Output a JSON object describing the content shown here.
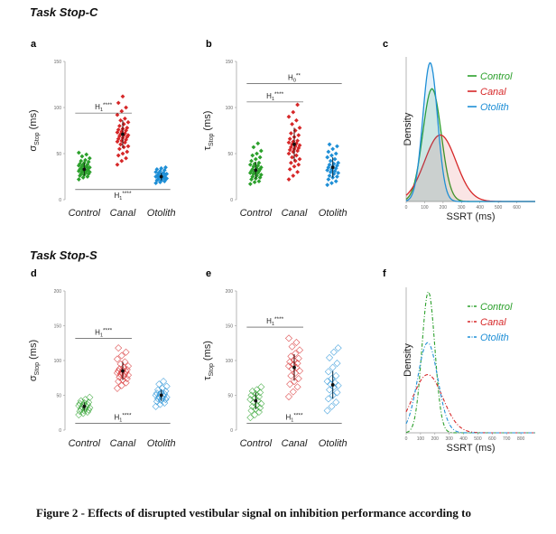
{
  "sections": {
    "top_title": "Task Stop-C",
    "bottom_title": "Task Stop-S"
  },
  "caption": "Figure 2 - Effects of disrupted vestibular signal on inhibition performance according to",
  "colors": {
    "Control": "#2ca02c",
    "Canal": "#d62728",
    "Otolith": "#1f8fd6"
  },
  "chart_data": [
    {
      "panel": "a",
      "type": "scatter",
      "style": "filled",
      "ylabel": "σStop (ms)",
      "ylabel_main": "σ",
      "ylabel_sub": "Stop",
      "ylabel_unit": "(ms)",
      "categories": [
        "Control",
        "Canal",
        "Otolith"
      ],
      "ylim": [
        0,
        150
      ],
      "yticks": [
        0,
        50,
        100,
        150
      ],
      "points": {
        "Control": [
          22,
          24,
          25,
          26,
          27,
          28,
          28,
          29,
          30,
          30,
          31,
          31,
          32,
          32,
          33,
          33,
          34,
          34,
          35,
          35,
          36,
          36,
          37,
          38,
          38,
          39,
          40,
          41,
          42,
          43,
          45,
          47,
          49,
          51
        ],
        "Canal": [
          38,
          42,
          45,
          48,
          50,
          52,
          55,
          57,
          58,
          60,
          62,
          63,
          64,
          65,
          66,
          67,
          68,
          69,
          70,
          70,
          71,
          72,
          73,
          74,
          75,
          76,
          77,
          78,
          80,
          82,
          84,
          86,
          88,
          92,
          96,
          100,
          105,
          112
        ],
        "Otolith": [
          18,
          19,
          20,
          21,
          21,
          22,
          22,
          23,
          23,
          24,
          24,
          25,
          25,
          25,
          26,
          26,
          27,
          27,
          28,
          28,
          29,
          29,
          30,
          31,
          32,
          33,
          34,
          35
        ]
      },
      "means": {
        "Control": 33,
        "Canal": 71,
        "Otolith": 25
      },
      "sd": {
        "Control": 7,
        "Canal": 15,
        "Otolith": 4
      },
      "annotations": [
        {
          "text": "H",
          "sub": "1",
          "sup": "****",
          "from": "Control",
          "to": "Canal",
          "y": 94,
          "label_side": "above"
        },
        {
          "text": "H",
          "sub": "1",
          "sup": "****",
          "from": "Control",
          "to": "Otolith",
          "y": 11,
          "label_side": "below"
        }
      ]
    },
    {
      "panel": "b",
      "type": "scatter",
      "style": "filled",
      "ylabel": "τStop (ms)",
      "ylabel_main": "τ",
      "ylabel_sub": "Stop",
      "ylabel_unit": "(ms)",
      "categories": [
        "Control",
        "Canal",
        "Otolith"
      ],
      "ylim": [
        0,
        150
      ],
      "yticks": [
        0,
        50,
        100,
        150
      ],
      "points": {
        "Control": [
          17,
          19,
          20,
          22,
          23,
          24,
          25,
          26,
          27,
          28,
          29,
          29,
          30,
          31,
          31,
          32,
          33,
          33,
          34,
          35,
          36,
          37,
          38,
          39,
          40,
          42,
          44,
          46,
          48,
          50,
          53,
          57,
          61
        ],
        "Canal": [
          22,
          26,
          30,
          33,
          36,
          38,
          40,
          42,
          44,
          46,
          48,
          50,
          52,
          53,
          54,
          55,
          56,
          57,
          58,
          59,
          60,
          61,
          62,
          63,
          64,
          66,
          68,
          70,
          72,
          75,
          78,
          82,
          86,
          90,
          95,
          103
        ],
        "Otolith": [
          16,
          18,
          20,
          22,
          24,
          25,
          26,
          28,
          29,
          30,
          31,
          32,
          33,
          34,
          35,
          36,
          37,
          38,
          39,
          40,
          42,
          44,
          46,
          48,
          50,
          52,
          55,
          58,
          60
        ]
      },
      "means": {
        "Control": 32,
        "Canal": 60,
        "Otolith": 35
      },
      "sd": {
        "Control": 9,
        "Canal": 18,
        "Otolith": 11
      },
      "annotations": [
        {
          "text": "H",
          "sub": "0",
          "sup": "**",
          "from": "Control",
          "to": "Otolith",
          "y": 126,
          "label_side": "above"
        },
        {
          "text": "H",
          "sub": "1",
          "sup": "****",
          "from": "Control",
          "to": "Canal",
          "y": 106,
          "label_side": "above"
        }
      ]
    },
    {
      "panel": "c",
      "type": "line",
      "style": "solid",
      "xlabel": "SSRT (ms)",
      "ylabel": "Density",
      "xlim": [
        0,
        700
      ],
      "xticks": [
        0,
        100,
        200,
        300,
        400,
        500,
        600
      ],
      "legend_position": "top-right",
      "series": [
        {
          "name": "Control",
          "mu": 140,
          "sigma": 50,
          "peak": 0.78
        },
        {
          "name": "Canal",
          "mu": 185,
          "sigma": 85,
          "peak": 0.46
        },
        {
          "name": "Otolith",
          "mu": 130,
          "sigma": 40,
          "peak": 0.96
        }
      ]
    },
    {
      "panel": "d",
      "type": "scatter",
      "style": "open",
      "ylabel": "σStop (ms)",
      "ylabel_main": "σ",
      "ylabel_sub": "Stop",
      "ylabel_unit": "(ms)",
      "categories": [
        "Control",
        "Canal",
        "Otolith"
      ],
      "ylim": [
        0,
        200
      ],
      "yticks": [
        0,
        50,
        100,
        150,
        200
      ],
      "points": {
        "Control": [
          22,
          24,
          26,
          27,
          28,
          29,
          30,
          31,
          32,
          33,
          34,
          35,
          36,
          37,
          38,
          39,
          40,
          42,
          44,
          47
        ],
        "Canal": [
          60,
          64,
          68,
          70,
          72,
          74,
          76,
          78,
          79,
          80,
          81,
          82,
          83,
          84,
          85,
          86,
          87,
          88,
          90,
          92,
          95,
          98,
          102,
          107,
          112,
          118
        ],
        "Otolith": [
          34,
          37,
          39,
          41,
          43,
          44,
          45,
          46,
          47,
          48,
          49,
          50,
          51,
          52,
          53,
          54,
          56,
          58,
          60,
          63,
          66,
          70
        ]
      },
      "means": {
        "Control": 34,
        "Canal": 85,
        "Otolith": 50
      },
      "sd": {
        "Control": 6,
        "Canal": 13,
        "Otolith": 8
      },
      "annotations": [
        {
          "text": "H",
          "sub": "1",
          "sup": "****",
          "from": "Control",
          "to": "Canal",
          "y": 132,
          "label_side": "above"
        },
        {
          "text": "H",
          "sub": "1",
          "sup": "****",
          "from": "Control",
          "to": "Otolith",
          "y": 10,
          "label_side": "above"
        }
      ]
    },
    {
      "panel": "e",
      "type": "scatter",
      "style": "open",
      "ylabel": "τStop (ms)",
      "ylabel_main": "τ",
      "ylabel_sub": "Stop",
      "ylabel_unit": "(ms)",
      "categories": [
        "Control",
        "Canal",
        "Otolith"
      ],
      "ylim": [
        0,
        200
      ],
      "yticks": [
        0,
        50,
        100,
        150,
        200
      ],
      "points": {
        "Control": [
          18,
          22,
          26,
          28,
          30,
          32,
          34,
          36,
          38,
          40,
          42,
          44,
          46,
          48,
          50,
          52,
          54,
          56,
          58,
          62
        ],
        "Canal": [
          48,
          55,
          62,
          66,
          70,
          74,
          78,
          82,
          85,
          88,
          90,
          92,
          94,
          96,
          98,
          100,
          103,
          106,
          110,
          115,
          120,
          126,
          132
        ],
        "Otolith": [
          28,
          34,
          40,
          45,
          50,
          54,
          58,
          62,
          64,
          66,
          68,
          70,
          74,
          78,
          84,
          90,
          96,
          104,
          112,
          118
        ]
      },
      "means": {
        "Control": 42,
        "Canal": 90,
        "Otolith": 65
      },
      "sd": {
        "Control": 12,
        "Canal": 19,
        "Otolith": 20
      },
      "annotations": [
        {
          "text": "H",
          "sub": "1",
          "sup": "****",
          "from": "Control",
          "to": "Canal",
          "y": 148,
          "label_side": "above"
        },
        {
          "text": "H",
          "sub": "1",
          "sup": "****",
          "from": "Control",
          "to": "Otolith",
          "y": 10,
          "label_side": "above"
        }
      ]
    },
    {
      "panel": "f",
      "type": "line",
      "style": "dashed",
      "xlabel": "SSRT (ms)",
      "ylabel": "Density",
      "xlim": [
        0,
        900
      ],
      "xticks": [
        0,
        100,
        200,
        300,
        400,
        500,
        600,
        700,
        800
      ],
      "legend_position": "top-right",
      "series": [
        {
          "name": "Control",
          "mu": 155,
          "sigma": 45,
          "peak": 0.97
        },
        {
          "name": "Canal",
          "mu": 150,
          "sigma": 105,
          "peak": 0.4
        },
        {
          "name": "Otolith",
          "mu": 150,
          "sigma": 70,
          "peak": 0.62
        }
      ]
    }
  ]
}
